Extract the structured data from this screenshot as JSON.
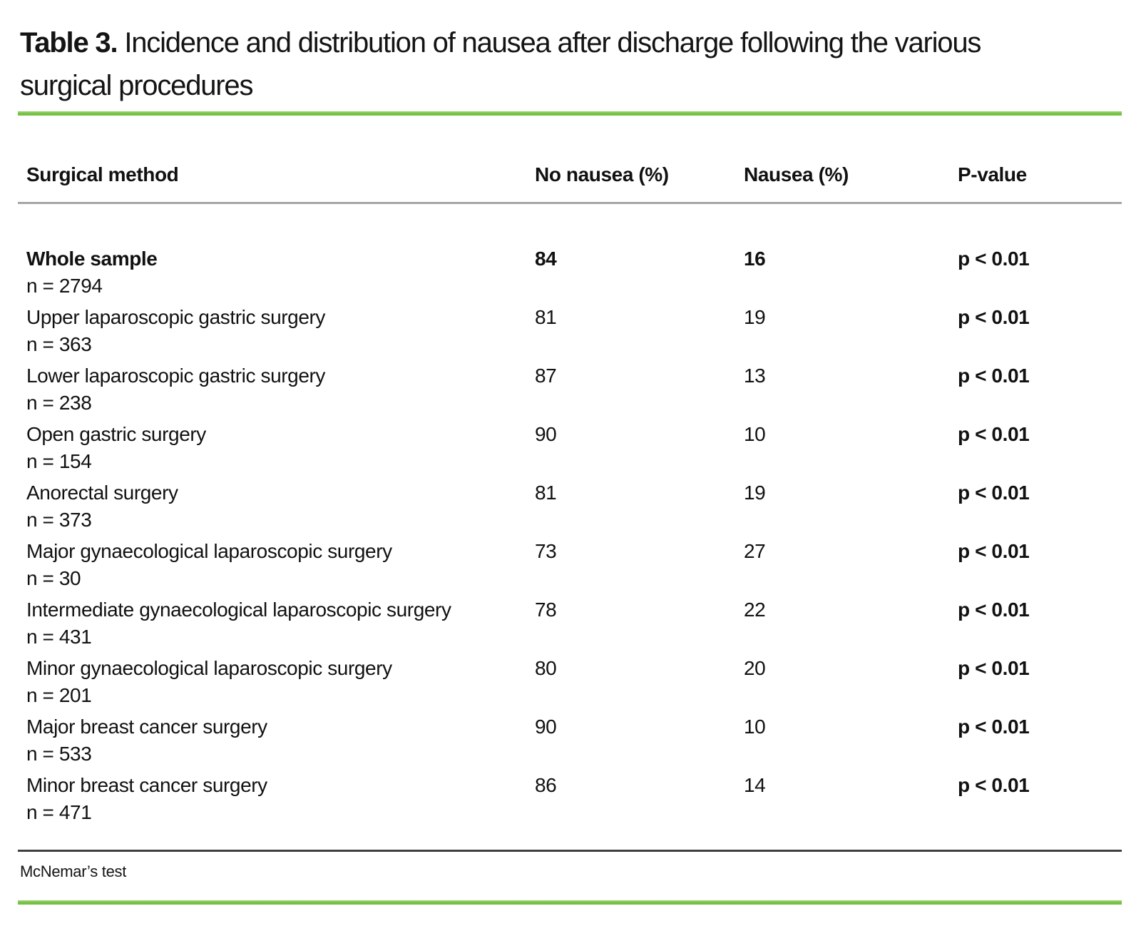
{
  "title": {
    "prefix": "Table 3.",
    "rest_line1": "Incidence and distribution of nausea after discharge following the various",
    "rest_line2": "surgical procedures"
  },
  "table": {
    "columns": [
      "Surgical method",
      "No nausea (%)",
      "Nausea (%)",
      "P-value"
    ],
    "rows": [
      {
        "method": "Whole sample",
        "n": "n = 2794",
        "no_nausea": "84",
        "nausea": "16",
        "p_value": "p < 0.01",
        "emphasis": true
      },
      {
        "method": "Upper laparoscopic gastric surgery",
        "n": "n = 363",
        "no_nausea": "81",
        "nausea": "19",
        "p_value": "p < 0.01",
        "emphasis": false
      },
      {
        "method": "Lower laparoscopic gastric surgery",
        "n": "n = 238",
        "no_nausea": "87",
        "nausea": "13",
        "p_value": "p < 0.01",
        "emphasis": false
      },
      {
        "method": "Open gastric surgery",
        "n": "n = 154",
        "no_nausea": "90",
        "nausea": "10",
        "p_value": "p < 0.01",
        "emphasis": false
      },
      {
        "method": "Anorectal surgery",
        "n": "n = 373",
        "no_nausea": "81",
        "nausea": "19",
        "p_value": "p < 0.01",
        "emphasis": false
      },
      {
        "method": "Major gynaecological laparoscopic surgery",
        "n": "n = 30",
        "no_nausea": "73",
        "nausea": "27",
        "p_value": "p < 0.01",
        "emphasis": false
      },
      {
        "method": "Intermediate gynaecological laparoscopic surgery",
        "n": "n = 431",
        "no_nausea": "78",
        "nausea": "22",
        "p_value": "p < 0.01",
        "emphasis": false
      },
      {
        "method": "Minor gynaecological laparoscopic surgery",
        "n": "n = 201",
        "no_nausea": "80",
        "nausea": "20",
        "p_value": "p < 0.01",
        "emphasis": false
      },
      {
        "method": "Major breast cancer surgery",
        "n": "n = 533",
        "no_nausea": "90",
        "nausea": "10",
        "p_value": "p < 0.01",
        "emphasis": false
      },
      {
        "method": "Minor breast cancer surgery",
        "n": "n = 471",
        "no_nausea": "86",
        "nausea": "14",
        "p_value": "p < 0.01",
        "emphasis": false
      }
    ],
    "footnote": "McNemar’s test"
  },
  "colors": {
    "accent_green": "#76c144",
    "rule_light": "#a6a6a6",
    "rule_dark": "#3f3f3f"
  }
}
